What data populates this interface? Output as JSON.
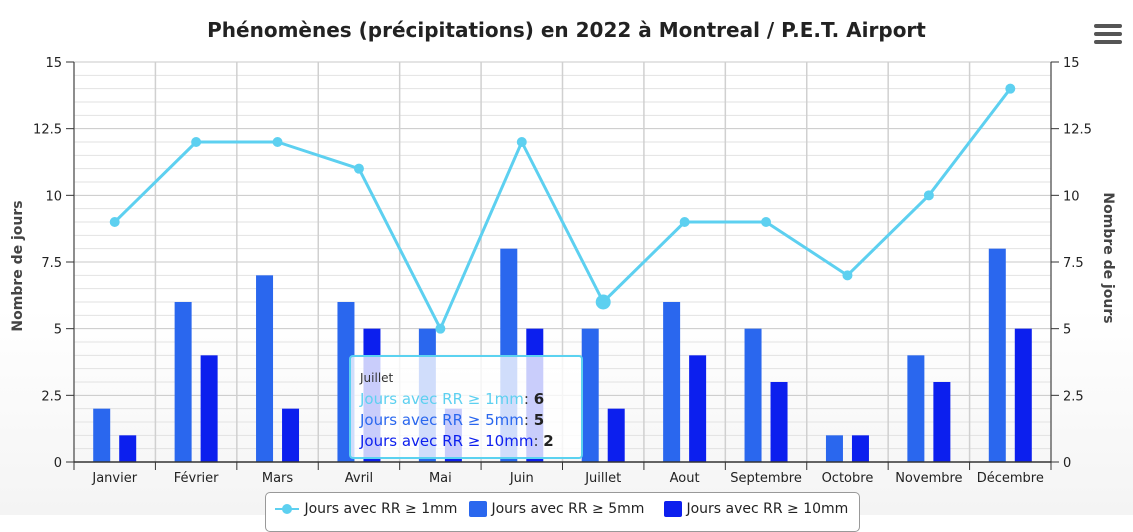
{
  "chart_data": {
    "type": "bar",
    "title": "Phénomènes (précipitations) en 2022 à Montreal / P.E.T. Airport",
    "ylabel_left": "Nombre de jours",
    "ylabel_right": "Nombre de jours",
    "ylim": [
      0,
      15
    ],
    "yticks": [
      "0",
      "2.5",
      "5",
      "7.5",
      "10",
      "12.5",
      "15"
    ],
    "categories": [
      "Janvier",
      "Février",
      "Mars",
      "Avril",
      "Mai",
      "Juin",
      "Juillet",
      "Aout",
      "Septembre",
      "Octobre",
      "Novembre",
      "Décembre"
    ],
    "series": [
      {
        "name": "Jours avec RR ≥ 1mm",
        "type": "line",
        "color": "#5dd0f0",
        "values": [
          9,
          12,
          12,
          11,
          5,
          12,
          6,
          9,
          9,
          7,
          10,
          14
        ]
      },
      {
        "name": "Jours avec RR ≥ 5mm",
        "type": "bar",
        "color": "#2a67ee",
        "values": [
          2,
          6,
          7,
          6,
          5,
          8,
          5,
          6,
          5,
          1,
          4,
          8
        ]
      },
      {
        "name": "Jours avec RR ≥ 10mm",
        "type": "bar",
        "color": "#0c1fee",
        "values": [
          1,
          4,
          2,
          5,
          2,
          5,
          2,
          4,
          3,
          1,
          3,
          5
        ]
      }
    ],
    "grid": true,
    "legend_position": "bottom"
  },
  "tooltip": {
    "category": "Juillet",
    "rows": [
      {
        "label": "Jours avec RR ≥ 1mm",
        "sep": ": ",
        "value": "6",
        "color": "#5dd0f0"
      },
      {
        "label": "Jours avec RR ≥ 5mm",
        "sep": ": ",
        "value": "5",
        "color": "#2a67ee"
      },
      {
        "label": "Jours avec RR ≥ 10mm",
        "sep": ": ",
        "value": "2",
        "color": "#0c1fee"
      }
    ]
  },
  "legend": {
    "items": [
      {
        "label": "Jours avec RR ≥ 1mm"
      },
      {
        "label": "Jours avec RR ≥ 5mm"
      },
      {
        "label": "Jours avec RR ≥ 10mm"
      }
    ]
  },
  "menu": {
    "icon": "hamburger-menu-icon"
  }
}
